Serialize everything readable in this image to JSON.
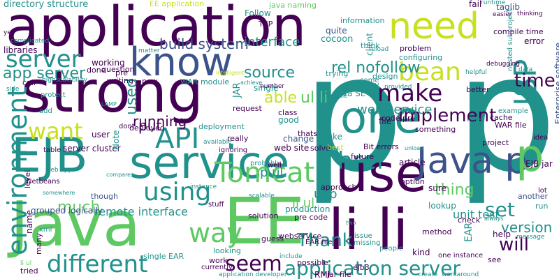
{
  "palette": {
    "background": "#ffffff",
    "dark_purple": "#440154",
    "indigo": "#3b528b",
    "teal": "#21918c",
    "green": "#5ec962",
    "yellow_green": "#c8e020"
  },
  "words": [
    {
      "text": "p p"
    },
    {
      "text": "strong"
    },
    {
      "text": "Java"
    },
    {
      "text": "application"
    },
    {
      "text": "EE"
    },
    {
      "text": "li li"
    },
    {
      "text": "service"
    },
    {
      "text": "use"
    },
    {
      "text": "one"
    },
    {
      "text": "know"
    },
    {
      "text": "need"
    },
    {
      "text": "Java p"
    },
    {
      "text": "EJB"
    },
    {
      "text": "JSP"
    },
    {
      "text": "p"
    },
    {
      "text": "bean"
    },
    {
      "text": "API"
    },
    {
      "text": "environment"
    },
    {
      "text": "different"
    },
    {
      "text": "Tomcat"
    },
    {
      "text": "using"
    },
    {
      "text": "way"
    },
    {
      "text": "make"
    },
    {
      "text": "want"
    },
    {
      "text": "href"
    },
    {
      "text": "implement"
    },
    {
      "text": "set"
    },
    {
      "text": "seem"
    },
    {
      "text": "application server"
    },
    {
      "text": "server"
    },
    {
      "text": "build system"
    },
    {
      "text": "rel nofollow"
    },
    {
      "text": "time"
    },
    {
      "text": "source"
    },
    {
      "text": "interface"
    },
    {
      "text": "app server"
    },
    {
      "text": "Thank"
    },
    {
      "text": "will"
    },
    {
      "text": "ul li"
    },
    {
      "text": "able"
    },
    {
      "text": "web service"
    },
    {
      "text": "thing"
    },
    {
      "text": "version"
    },
    {
      "text": "running"
    },
    {
      "text": "much"
    },
    {
      "text": "remote interface"
    },
    {
      "text": "p ul"
    },
    {
      "text": "ul p"
    },
    {
      "text": "li ul"
    },
    {
      "text": "unit test"
    },
    {
      "text": "used"
    },
    {
      "text": "put"
    },
    {
      "text": "directory structure"
    },
    {
      "text": "EE application"
    },
    {
      "text": "java naming"
    },
    {
      "text": "taglib"
    },
    {
      "text": "server cluster"
    },
    {
      "text": "web site"
    },
    {
      "text": "lookup"
    },
    {
      "text": "production"
    },
    {
      "text": "really"
    },
    {
      "text": "cocoon"
    },
    {
      "text": "quite"
    },
    {
      "text": "information"
    },
    {
      "text": "client"
    },
    {
      "text": "problem"
    },
    {
      "text": "configuring"
    },
    {
      "text": "design"
    },
    {
      "text": "compile time"
    },
    {
      "text": "error"
    },
    {
      "text": "Enterprise software"
    },
    {
      "text": "nested subproject"
    },
    {
      "text": "WAR file"
    },
    {
      "text": "code pre"
    },
    {
      "text": "Bit errors"
    },
    {
      "text": "project"
    },
    {
      "text": "EJB jar"
    },
    {
      "text": "run"
    },
    {
      "text": "another"
    },
    {
      "text": "lot"
    },
    {
      "text": "JAR"
    },
    {
      "text": "WAR module"
    },
    {
      "text": "working"
    },
    {
      "text": "done"
    },
    {
      "text": "pre"
    },
    {
      "text": "single"
    },
    {
      "text": "Java SE"
    },
    {
      "text": "change"
    },
    {
      "text": "take"
    },
    {
      "text": "best"
    },
    {
      "text": "Follow"
    },
    {
      "text": "TCP"
    },
    {
      "text": "libraries"
    },
    {
      "text": "call"
    },
    {
      "text": "question"
    },
    {
      "text": "writing"
    },
    {
      "text": "now"
    },
    {
      "text": "Note"
    },
    {
      "text": "user"
    },
    {
      "text": "deployed"
    },
    {
      "text": "deployment"
    },
    {
      "text": "request"
    },
    {
      "text": "good"
    },
    {
      "text": "class"
    },
    {
      "text": "thats"
    },
    {
      "text": "something"
    },
    {
      "text": "file"
    },
    {
      "text": "solve"
    },
    {
      "text": "load"
    },
    {
      "text": "article"
    },
    {
      "text": "future"
    },
    {
      "text": "level"
    },
    {
      "text": "grouped logically"
    },
    {
      "text": "Netbeans"
    },
    {
      "text": "option"
    },
    {
      "text": "though"
    },
    {
      "text": "name"
    },
    {
      "text": "stuff"
    },
    {
      "text": "solution"
    },
    {
      "text": "pre code"
    },
    {
      "text": "guess"
    },
    {
      "text": "webservice"
    },
    {
      "text": "EAR file"
    },
    {
      "text": "possible"
    },
    {
      "text": "ejb3"
    },
    {
      "text": "RMI"
    },
    {
      "text": "jar file"
    },
    {
      "text": "work"
    },
    {
      "text": "looking"
    },
    {
      "text": "currently"
    },
    {
      "text": "single EAR"
    },
    {
      "text": "tried"
    },
    {
      "text": "many"
    },
    {
      "text": "application developer"
    },
    {
      "text": "one instance"
    },
    {
      "text": "see"
    },
    {
      "text": "kind"
    },
    {
      "text": "EAR"
    },
    {
      "text": "help"
    },
    {
      "text": "check"
    },
    {
      "text": "fail"
    },
    {
      "text": "runtime"
    },
    {
      "text": "easier"
    },
    {
      "text": "thinking"
    },
    {
      "text": "debugging"
    },
    {
      "text": "helpful"
    },
    {
      "text": "better"
    },
    {
      "text": "cache"
    },
    {
      "text": "timer"
    },
    {
      "text": "idea"
    },
    {
      "text": "example"
    },
    {
      "text": "data"
    },
    {
      "text": "trying"
    },
    {
      "text": "think"
    },
    {
      "text": "come"
    },
    {
      "text": "provided"
    },
    {
      "text": "easy"
    },
    {
      "text": "reload"
    },
    {
      "text": "module"
    },
    {
      "text": "sure"
    },
    {
      "text": "approach"
    },
    {
      "text": "issue"
    },
    {
      "text": "missing"
    },
    {
      "text": "people"
    },
    {
      "text": "method"
    },
    {
      "text": "include"
    },
    {
      "text": "yes"
    },
    {
      "text": "complicated"
    },
    {
      "text": "side"
    },
    {
      "text": "highscalability"
    },
    {
      "text": "protect"
    },
    {
      "text": "add"
    },
    {
      "text": "LAMP"
    },
    {
      "text": "dont"
    },
    {
      "text": "table"
    },
    {
      "text": "web app"
    },
    {
      "text": "compare"
    },
    {
      "text": "instance"
    },
    {
      "text": "somewhere"
    },
    {
      "text": "xml"
    },
    {
      "text": "ignoring"
    },
    {
      "text": "available"
    },
    {
      "text": "probably"
    },
    {
      "text": "well"
    },
    {
      "text": "scalable"
    },
    {
      "text": "matter"
    },
    {
      "text": "achieve"
    },
    {
      "text": "number"
    },
    {
      "text": "two"
    },
    {
      "text": "always"
    },
    {
      "text": "message"
    },
    {
      "text": "create"
    },
    {
      "text": "workaround"
    },
    {
      "text": "unload"
    },
    {
      "text": "intelligent"
    },
    {
      "text": "li ul"
    }
  ]
}
